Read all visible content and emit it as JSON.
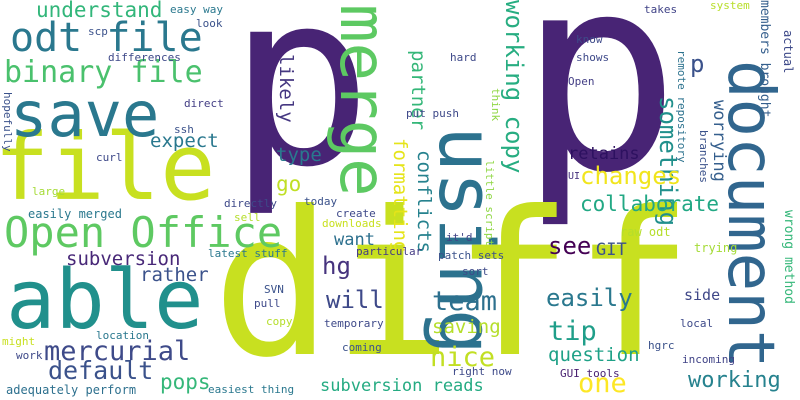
{
  "words": [
    {
      "text": "p",
      "color": "#482475",
      "rotated": false
    },
    {
      "text": "p",
      "color": "#482475",
      "rotated": false
    },
    {
      "text": "diff",
      "color": "#c8e020",
      "rotated": false
    },
    {
      "text": "file",
      "color": "#c8e020",
      "rotated": false
    },
    {
      "text": "able",
      "color": "#21908c",
      "rotated": false
    },
    {
      "text": "save",
      "color": "#2a788e",
      "rotated": false
    },
    {
      "text": "using",
      "color": "#2c728e",
      "rotated": true
    },
    {
      "text": "merge",
      "color": "#5dc962",
      "rotated": true
    },
    {
      "text": "document",
      "color": "#31668e",
      "rotated": true
    },
    {
      "text": "Open Office",
      "color": "#5ec962",
      "rotated": false
    },
    {
      "text": "odt file",
      "color": "#2a788e",
      "rotated": false
    },
    {
      "text": "binary file",
      "color": "#4ac16d",
      "rotated": false
    },
    {
      "text": "mercurial",
      "color": "#3e4a89",
      "rotated": false
    },
    {
      "text": "default",
      "color": "#3b528b",
      "rotated": false
    },
    {
      "text": "understand",
      "color": "#32b67a",
      "rotated": false
    },
    {
      "text": "working copy",
      "color": "#27ad81",
      "rotated": true
    },
    {
      "text": "something",
      "color": "#21908c",
      "rotated": true
    },
    {
      "text": "changes",
      "color": "#f1e51d",
      "rotated": false
    },
    {
      "text": "collaborate",
      "color": "#22a884",
      "rotated": false
    },
    {
      "text": "see",
      "color": "#440154",
      "rotated": false
    },
    {
      "text": "GIT",
      "color": "#3b528b",
      "rotated": false
    },
    {
      "text": "team",
      "color": "#2d708e",
      "rotated": false
    },
    {
      "text": "easily",
      "color": "#2a788e",
      "rotated": false
    },
    {
      "text": "tip",
      "color": "#1f9e89",
      "rotated": false
    },
    {
      "text": "nice",
      "color": "#c2df23",
      "rotated": false
    },
    {
      "text": "question",
      "color": "#1fa187",
      "rotated": false
    },
    {
      "text": "one",
      "color": "#fde725",
      "rotated": false
    },
    {
      "text": "working",
      "color": "#26828e",
      "rotated": false
    },
    {
      "text": "pops",
      "color": "#35b779",
      "rotated": false
    },
    {
      "text": "hg",
      "color": "#46337e",
      "rotated": false
    },
    {
      "text": "will",
      "color": "#3e4989",
      "rotated": false
    },
    {
      "text": "saving",
      "color": "#b5de2b",
      "rotated": false
    },
    {
      "text": "subversion",
      "color": "#482878",
      "rotated": false
    },
    {
      "text": "rather",
      "color": "#3b528b",
      "rotated": false
    },
    {
      "text": "want",
      "color": "#2d708e",
      "rotated": false
    },
    {
      "text": "expect",
      "color": "#2a788e",
      "rotated": false
    },
    {
      "text": "type",
      "color": "#29798e",
      "rotated": false
    },
    {
      "text": "go",
      "color": "#c0df25",
      "rotated": false
    },
    {
      "text": "likely",
      "color": "#453781",
      "rotated": true
    },
    {
      "text": "conflicts",
      "color": "#26828e",
      "rotated": true
    },
    {
      "text": "formatting",
      "color": "#e5e419",
      "rotated": true
    },
    {
      "text": "partner",
      "color": "#35b779",
      "rotated": true
    },
    {
      "text": "retains",
      "color": "#2d1160",
      "rotated": false
    },
    {
      "text": "worrying",
      "color": "#355f8d",
      "rotated": true
    },
    {
      "text": "p",
      "color": "#3b528b",
      "rotated": false
    },
    {
      "text": "side",
      "color": "#3f4788",
      "rotated": false
    },
    {
      "text": "easily merged",
      "color": "#2a788e",
      "rotated": false
    },
    {
      "text": "subversion reads",
      "color": "#25ab82",
      "rotated": false
    },
    {
      "text": "adequately perform",
      "color": "#2d708e",
      "rotated": false
    },
    {
      "text": "members brought",
      "color": "#355f8d",
      "rotated": true
    },
    {
      "text": "wrong method",
      "color": "#35b779",
      "rotated": true
    },
    {
      "text": "actual",
      "color": "#3e4a89",
      "rotated": true
    },
    {
      "text": "system",
      "color": "#b8de29",
      "rotated": false
    },
    {
      "text": "takes",
      "color": "#404387",
      "rotated": false
    },
    {
      "text": "know",
      "color": "#3e4a89",
      "rotated": false
    },
    {
      "text": "shows",
      "color": "#3e4989",
      "rotated": false
    },
    {
      "text": "Open",
      "color": "#433e85",
      "rotated": false
    },
    {
      "text": "remote repository",
      "color": "#2c728e",
      "rotated": true
    },
    {
      "text": "branches",
      "color": "#3b528b",
      "rotated": true
    },
    {
      "text": "UI",
      "color": "#46327e",
      "rotated": false
    },
    {
      "text": "trying",
      "color": "#a5db36",
      "rotated": false
    },
    {
      "text": "raw odt",
      "color": "#b5de2b",
      "rotated": false
    },
    {
      "text": "local",
      "color": "#3e4a89",
      "rotated": false
    },
    {
      "text": "hgrc",
      "color": "#3b528b",
      "rotated": false
    },
    {
      "text": "incoming",
      "color": "#414487",
      "rotated": false
    },
    {
      "text": "GUI tools",
      "color": "#481f70",
      "rotated": false
    },
    {
      "text": "right now",
      "color": "#3e4a89",
      "rotated": false
    },
    {
      "text": "easy way",
      "color": "#2a788e",
      "rotated": false
    },
    {
      "text": "look",
      "color": "#3b528b",
      "rotated": false
    },
    {
      "text": "hard",
      "color": "#3e4989",
      "rotated": false
    },
    {
      "text": "think",
      "color": "#8fd744",
      "rotated": true
    },
    {
      "text": "put push",
      "color": "#3e4989",
      "rotated": false
    },
    {
      "text": "little script",
      "color": "#8fd744",
      "rotated": true
    },
    {
      "text": "it'd",
      "color": "#414487",
      "rotated": false
    },
    {
      "text": "patch sets",
      "color": "#3b528b",
      "rotated": false
    },
    {
      "text": "sort",
      "color": "#3e4a89",
      "rotated": false
    },
    {
      "text": "particular",
      "color": "#443b84",
      "rotated": false
    },
    {
      "text": "create",
      "color": "#3e4989",
      "rotated": false
    },
    {
      "text": "downloads",
      "color": "#c8e020",
      "rotated": false
    },
    {
      "text": "today",
      "color": "#3b528b",
      "rotated": false
    },
    {
      "text": "directly",
      "color": "#3e4989",
      "rotated": false
    },
    {
      "text": "sell",
      "color": "#b5de2b",
      "rotated": false
    },
    {
      "text": "latest stuff",
      "color": "#2a788e",
      "rotated": false
    },
    {
      "text": "direct",
      "color": "#433e85",
      "rotated": false
    },
    {
      "text": "differences",
      "color": "#3e4989",
      "rotated": false
    },
    {
      "text": "scp",
      "color": "#3b528b",
      "rotated": false
    },
    {
      "text": "ssh",
      "color": "#3b528b",
      "rotated": false
    },
    {
      "text": "curl",
      "color": "#3e4989",
      "rotated": false
    },
    {
      "text": "hopefully",
      "color": "#3b528b",
      "rotated": true
    },
    {
      "text": "large",
      "color": "#a5db36",
      "rotated": false
    },
    {
      "text": "SVN",
      "color": "#3b528b",
      "rotated": false
    },
    {
      "text": "pull",
      "color": "#3e4989",
      "rotated": false
    },
    {
      "text": "copy",
      "color": "#b5de2b",
      "rotated": false
    },
    {
      "text": "temporary",
      "color": "#3e4989",
      "rotated": false
    },
    {
      "text": "location",
      "color": "#2a788e",
      "rotated": false
    },
    {
      "text": "coming",
      "color": "#3b528b",
      "rotated": false
    },
    {
      "text": "might",
      "color": "#c8e020",
      "rotated": false
    },
    {
      "text": "work",
      "color": "#3e4989",
      "rotated": false
    },
    {
      "text": "easiest thing",
      "color": "#2a788e",
      "rotated": false
    }
  ]
}
